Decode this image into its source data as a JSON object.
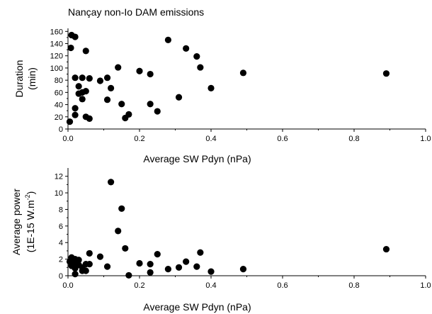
{
  "figure": {
    "title": "Nançay non-Io DAM emissions"
  },
  "chart_data": [
    {
      "type": "scatter",
      "title": "",
      "xlabel": "Average SW Pdyn (nPa)",
      "ylabel_lines": [
        "Duration",
        "(min)"
      ],
      "xlim": [
        0,
        1.0
      ],
      "ylim": [
        0,
        165
      ],
      "xticks": [
        0,
        0.2,
        0.4,
        0.6,
        0.8,
        1.0
      ],
      "xtick_labels": [
        "0.0",
        "0.2",
        "0.4",
        "0.6",
        "0.8",
        "1.0"
      ],
      "yticks": [
        0,
        20,
        40,
        60,
        80,
        100,
        120,
        140,
        160
      ],
      "ytick_labels": [
        "0",
        "20",
        "40",
        "60",
        "80",
        "100",
        "120",
        "140",
        "160"
      ],
      "grid": false,
      "points": [
        {
          "x": 0.005,
          "y": 12
        },
        {
          "x": 0.008,
          "y": 133
        },
        {
          "x": 0.01,
          "y": 154
        },
        {
          "x": 0.02,
          "y": 151
        },
        {
          "x": 0.02,
          "y": 23
        },
        {
          "x": 0.02,
          "y": 34
        },
        {
          "x": 0.02,
          "y": 84
        },
        {
          "x": 0.03,
          "y": 70
        },
        {
          "x": 0.03,
          "y": 58
        },
        {
          "x": 0.04,
          "y": 84
        },
        {
          "x": 0.04,
          "y": 60
        },
        {
          "x": 0.04,
          "y": 49
        },
        {
          "x": 0.05,
          "y": 128
        },
        {
          "x": 0.05,
          "y": 62
        },
        {
          "x": 0.05,
          "y": 20
        },
        {
          "x": 0.06,
          "y": 83
        },
        {
          "x": 0.06,
          "y": 17
        },
        {
          "x": 0.09,
          "y": 79
        },
        {
          "x": 0.11,
          "y": 84
        },
        {
          "x": 0.11,
          "y": 48
        },
        {
          "x": 0.12,
          "y": 67
        },
        {
          "x": 0.14,
          "y": 101
        },
        {
          "x": 0.15,
          "y": 41
        },
        {
          "x": 0.16,
          "y": 18
        },
        {
          "x": 0.17,
          "y": 24
        },
        {
          "x": 0.2,
          "y": 95
        },
        {
          "x": 0.23,
          "y": 90
        },
        {
          "x": 0.23,
          "y": 41
        },
        {
          "x": 0.25,
          "y": 29
        },
        {
          "x": 0.28,
          "y": 146
        },
        {
          "x": 0.31,
          "y": 52
        },
        {
          "x": 0.33,
          "y": 132
        },
        {
          "x": 0.36,
          "y": 119
        },
        {
          "x": 0.37,
          "y": 101
        },
        {
          "x": 0.4,
          "y": 67
        },
        {
          "x": 0.49,
          "y": 92
        },
        {
          "x": 0.89,
          "y": 91
        }
      ]
    },
    {
      "type": "scatter",
      "title": "",
      "xlabel": "Average SW Pdyn (nPa)",
      "ylabel_lines": [
        "Average power",
        "(1E-15 W.m",
        "-2",
        ")"
      ],
      "xlim": [
        0,
        1.0
      ],
      "ylim": [
        0,
        13
      ],
      "xticks": [
        0,
        0.2,
        0.4,
        0.6,
        0.8,
        1.0
      ],
      "xtick_labels": [
        "0.0",
        "0.2",
        "0.4",
        "0.6",
        "0.8",
        "1.0"
      ],
      "yticks": [
        0,
        2,
        4,
        6,
        8,
        10,
        12
      ],
      "ytick_labels": [
        "0",
        "2",
        "4",
        "6",
        "8",
        "10",
        "12"
      ],
      "grid": false,
      "points": [
        {
          "x": 0.005,
          "y": 1.7
        },
        {
          "x": 0.01,
          "y": 2.2
        },
        {
          "x": 0.01,
          "y": 1.2
        },
        {
          "x": 0.02,
          "y": 2.0
        },
        {
          "x": 0.02,
          "y": 1.5
        },
        {
          "x": 0.02,
          "y": 0.9
        },
        {
          "x": 0.02,
          "y": 0.2
        },
        {
          "x": 0.03,
          "y": 1.9
        },
        {
          "x": 0.03,
          "y": 1.3
        },
        {
          "x": 0.04,
          "y": 0.6
        },
        {
          "x": 0.04,
          "y": 1.0
        },
        {
          "x": 0.05,
          "y": 1.4
        },
        {
          "x": 0.05,
          "y": 0.6
        },
        {
          "x": 0.06,
          "y": 2.7
        },
        {
          "x": 0.06,
          "y": 1.4
        },
        {
          "x": 0.09,
          "y": 2.3
        },
        {
          "x": 0.11,
          "y": 1.1
        },
        {
          "x": 0.12,
          "y": 11.3
        },
        {
          "x": 0.14,
          "y": 5.4
        },
        {
          "x": 0.15,
          "y": 8.1
        },
        {
          "x": 0.16,
          "y": 3.3
        },
        {
          "x": 0.17,
          "y": 0.05
        },
        {
          "x": 0.2,
          "y": 1.5
        },
        {
          "x": 0.23,
          "y": 1.4
        },
        {
          "x": 0.23,
          "y": 0.4
        },
        {
          "x": 0.25,
          "y": 2.6
        },
        {
          "x": 0.28,
          "y": 0.8
        },
        {
          "x": 0.31,
          "y": 1.0
        },
        {
          "x": 0.33,
          "y": 1.7
        },
        {
          "x": 0.36,
          "y": 1.1
        },
        {
          "x": 0.37,
          "y": 2.8
        },
        {
          "x": 0.4,
          "y": 0.5
        },
        {
          "x": 0.49,
          "y": 0.8
        },
        {
          "x": 0.89,
          "y": 3.2
        }
      ]
    }
  ]
}
